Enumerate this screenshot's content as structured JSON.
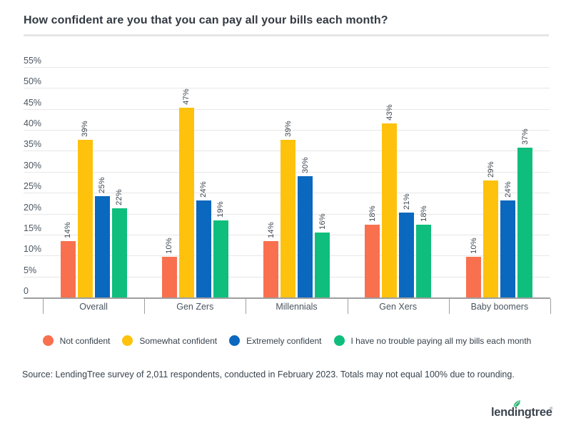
{
  "title": "How confident are you that you can pay all your bills each month?",
  "source_note": "Source: LendingTree survey of 2,011 respondents, conducted in February 2023. Totals may not equal 100% due to rounding.",
  "logo": {
    "text": "lendingtree",
    "reg_mark": "®",
    "leaf_icon": "leaf-icon",
    "leaf_color": "#2bb673",
    "text_color": "#3c4650"
  },
  "colors": {
    "not_confident": "#f9704f",
    "somewhat_confident": "#fec20d",
    "extremely_confident": "#0a68bf",
    "no_trouble": "#0fbe7c",
    "grid": "#e7e7e7",
    "axis": "#9e9e9e",
    "text": "#37424c"
  },
  "chart_data": {
    "type": "bar",
    "title": "How confident are you that you can pay all your bills each month?",
    "categories": [
      "Overall",
      "Gen Zers",
      "Millennials",
      "Gen Xers",
      "Baby boomers"
    ],
    "series": [
      {
        "name": "Not confident",
        "color": "#f9704f",
        "values": [
          14,
          10,
          14,
          18,
          10
        ]
      },
      {
        "name": "Somewhat confident",
        "color": "#fec20d",
        "values": [
          39,
          47,
          39,
          43,
          29
        ]
      },
      {
        "name": "Extremely confident",
        "color": "#0a68bf",
        "values": [
          25,
          24,
          30,
          21,
          24
        ]
      },
      {
        "name": "I have no trouble paying all my bills each month",
        "color": "#0fbe7c",
        "values": [
          22,
          19,
          16,
          18,
          37
        ]
      }
    ],
    "value_label_suffix": "%",
    "value_labels_rotated": true,
    "xlabel": "",
    "ylabel": "",
    "ylim": [
      0,
      55
    ],
    "ytick_step": 5,
    "ytick_labels": [
      "0",
      "5%",
      "10%",
      "15%",
      "20%",
      "25%",
      "30%",
      "35%",
      "40%",
      "45%",
      "50%",
      "55%"
    ],
    "grid": true,
    "legend_position": "bottom"
  }
}
